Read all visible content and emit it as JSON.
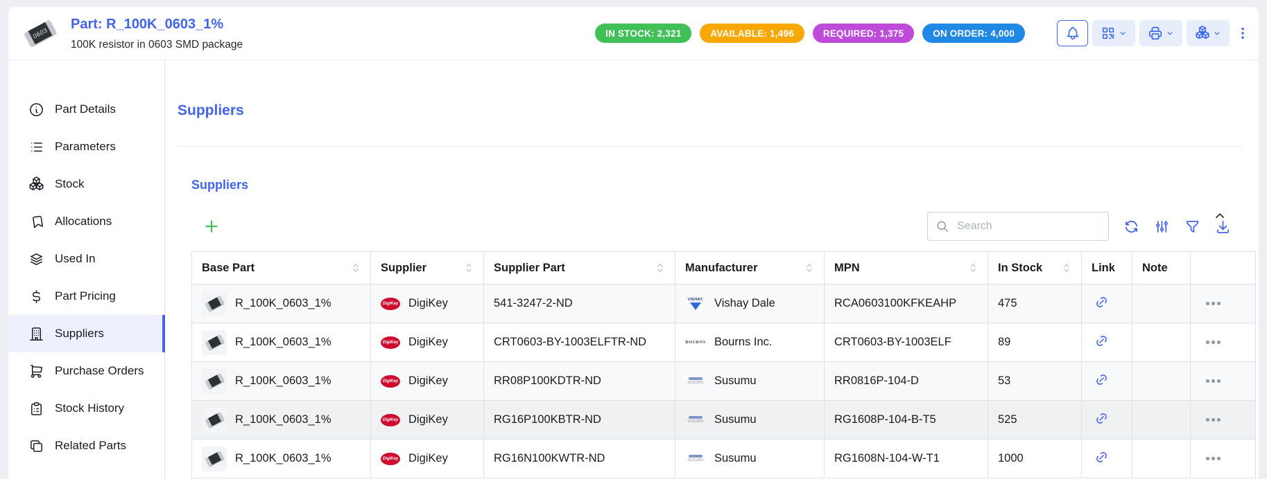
{
  "part_header": {
    "title": "Part: R_100K_0603_1%",
    "subtitle": "100K resistor in 0603 SMD package",
    "thumb_marking": "0603",
    "badges": [
      {
        "id": "in-stock",
        "label": "IN STOCK: 2,321",
        "color": "#40c057"
      },
      {
        "id": "available",
        "label": "AVAILABLE: 1,496",
        "color": "#f8a800"
      },
      {
        "id": "required",
        "label": "REQUIRED: 1,375",
        "color": "#bf4bdb"
      },
      {
        "id": "on-order",
        "label": "ON ORDER: 4,000",
        "color": "#2089e5"
      }
    ],
    "actions": [
      {
        "id": "notifications",
        "icon": "bell",
        "chevron": false,
        "active": true
      },
      {
        "id": "barcode",
        "icon": "qrcode",
        "chevron": true,
        "active": false
      },
      {
        "id": "print",
        "icon": "printer",
        "chevron": true,
        "active": false
      },
      {
        "id": "stock-actions",
        "icon": "packages",
        "chevron": true,
        "active": false
      }
    ]
  },
  "sidebar": {
    "items": [
      {
        "id": "part-details",
        "label": "Part Details",
        "icon": "info-circle",
        "selected": false
      },
      {
        "id": "parameters",
        "label": "Parameters",
        "icon": "list",
        "selected": false
      },
      {
        "id": "stock",
        "label": "Stock",
        "icon": "packages",
        "selected": false
      },
      {
        "id": "allocations",
        "label": "Allocations",
        "icon": "bookmark",
        "selected": false
      },
      {
        "id": "used-in",
        "label": "Used In",
        "icon": "stack",
        "selected": false
      },
      {
        "id": "part-pricing",
        "label": "Part Pricing",
        "icon": "currency-dollar",
        "selected": false
      },
      {
        "id": "suppliers",
        "label": "Suppliers",
        "icon": "building",
        "selected": true
      },
      {
        "id": "purchase-orders",
        "label": "Purchase Orders",
        "icon": "shopping-cart",
        "selected": false
      },
      {
        "id": "stock-history",
        "label": "Stock History",
        "icon": "clipboard-list",
        "selected": false
      },
      {
        "id": "related-parts",
        "label": "Related Parts",
        "icon": "copy",
        "selected": false
      }
    ]
  },
  "main": {
    "page_title": "Suppliers",
    "panel_title": "Suppliers",
    "search_placeholder": "Search"
  },
  "table": {
    "columns": [
      {
        "key": "base_part",
        "label": "Base Part",
        "sortable": true
      },
      {
        "key": "supplier",
        "label": "Supplier",
        "sortable": true
      },
      {
        "key": "supplier_part",
        "label": "Supplier Part",
        "sortable": true
      },
      {
        "key": "manufacturer",
        "label": "Manufacturer",
        "sortable": true
      },
      {
        "key": "mpn",
        "label": "MPN",
        "sortable": true
      },
      {
        "key": "in_stock",
        "label": "In Stock",
        "sortable": true
      },
      {
        "key": "link",
        "label": "Link",
        "sortable": false
      },
      {
        "key": "note",
        "label": "Note",
        "sortable": false
      },
      {
        "key": "actions",
        "label": "",
        "sortable": false
      }
    ],
    "rows": [
      {
        "base_part": "R_100K_0603_1%",
        "supplier": "DigiKey",
        "supplier_part": "541-3247-2-ND",
        "manufacturer": "Vishay Dale",
        "manufacturer_logo": "vishay",
        "mpn": "RCA0603100KFKEAHP",
        "in_stock": "475",
        "link": true,
        "note": "",
        "striped": true,
        "hovered": false
      },
      {
        "base_part": "R_100K_0603_1%",
        "supplier": "DigiKey",
        "supplier_part": "CRT0603-BY-1003ELFTR-ND",
        "manufacturer": "Bourns Inc.",
        "manufacturer_logo": "bourns",
        "mpn": "CRT0603-BY-1003ELF",
        "in_stock": "89",
        "link": true,
        "note": "",
        "striped": false,
        "hovered": false
      },
      {
        "base_part": "R_100K_0603_1%",
        "supplier": "DigiKey",
        "supplier_part": "RR08P100KDTR-ND",
        "manufacturer": "Susumu",
        "manufacturer_logo": "susumu",
        "mpn": "RR0816P-104-D",
        "in_stock": "53",
        "link": true,
        "note": "",
        "striped": true,
        "hovered": false
      },
      {
        "base_part": "R_100K_0603_1%",
        "supplier": "DigiKey",
        "supplier_part": "RG16P100KBTR-ND",
        "manufacturer": "Susumu",
        "manufacturer_logo": "susumu",
        "mpn": "RG1608P-104-B-T5",
        "in_stock": "525",
        "link": true,
        "note": "",
        "striped": false,
        "hovered": true
      },
      {
        "base_part": "R_100K_0603_1%",
        "supplier": "DigiKey",
        "supplier_part": "RG16N100KWTR-ND",
        "manufacturer": "Susumu",
        "manufacturer_logo": "susumu",
        "mpn": "RG1608N-104-W-T1",
        "in_stock": "1000",
        "link": true,
        "note": "",
        "striped": false,
        "hovered": false
      }
    ]
  },
  "colors": {
    "accent": "#4263eb",
    "add_button": "#40c057",
    "selected_nav_bg": "#eef1fd",
    "table_stripe": "#f8f9fa",
    "table_hover": "#f0f1f3"
  }
}
